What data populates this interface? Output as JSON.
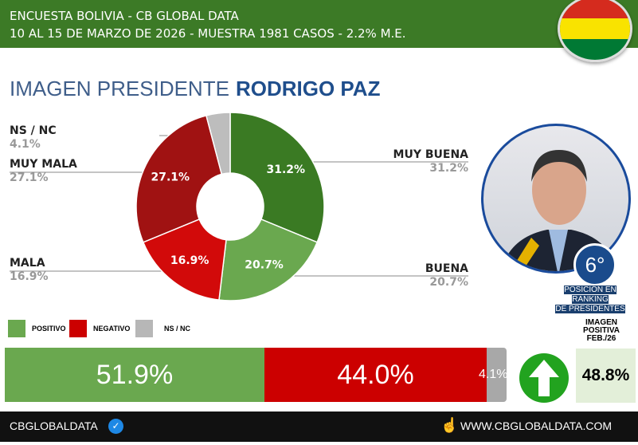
{
  "header": {
    "line1": "ENCUESTA BOLIVIA - CB GLOBAL DATA",
    "line2": "10 AL 15 DE MARZO DE 2026 - MUESTRA 1981 CASOS - 2.2% M.E."
  },
  "title": {
    "prefix": "IMAGEN PRESIDENTE",
    "name": "RODRIGO PAZ"
  },
  "chart_data": {
    "type": "pie",
    "title": "IMAGEN PRESIDENTE RODRIGO PAZ",
    "donut": true,
    "categories": [
      "MUY BUENA",
      "BUENA",
      "MALA",
      "MUY MALA",
      "NS / NC"
    ],
    "values": [
      31.2,
      20.7,
      16.9,
      27.1,
      4.1
    ],
    "labels": [
      "31.2%",
      "20.7%",
      "16.9%",
      "27.1%",
      "4.1%"
    ],
    "colors": [
      "#3a7a23",
      "#6aa84f",
      "#d20a0a",
      "#a01212",
      "#bdbdbd"
    ]
  },
  "ranking": {
    "value": "6°",
    "text1": "POSICIÓN EN RANKING",
    "text2": "DE PRESIDENTES"
  },
  "legend": [
    {
      "label": "POSITIVO",
      "color": "#6aa84f"
    },
    {
      "label": "NEGATIVO",
      "color": "#cc0000"
    },
    {
      "label": "NS / NC",
      "color": "#b7b7b7"
    }
  ],
  "summary": [
    {
      "label": "51.9%",
      "value": 51.9,
      "color": "#6aa84f"
    },
    {
      "label": "44.0%",
      "value": 44.0,
      "color": "#cc0000"
    },
    {
      "label": "4.1%",
      "value": 4.1,
      "color": "#a8a8a8"
    }
  ],
  "previous": {
    "title1": "IMAGEN",
    "title2": "POSITIVA",
    "title3": "FEB./26",
    "value": "48.8%"
  },
  "footer": {
    "left": "CBGLOBALDATA",
    "right": "WWW.CBGLOBALDATA.COM"
  }
}
